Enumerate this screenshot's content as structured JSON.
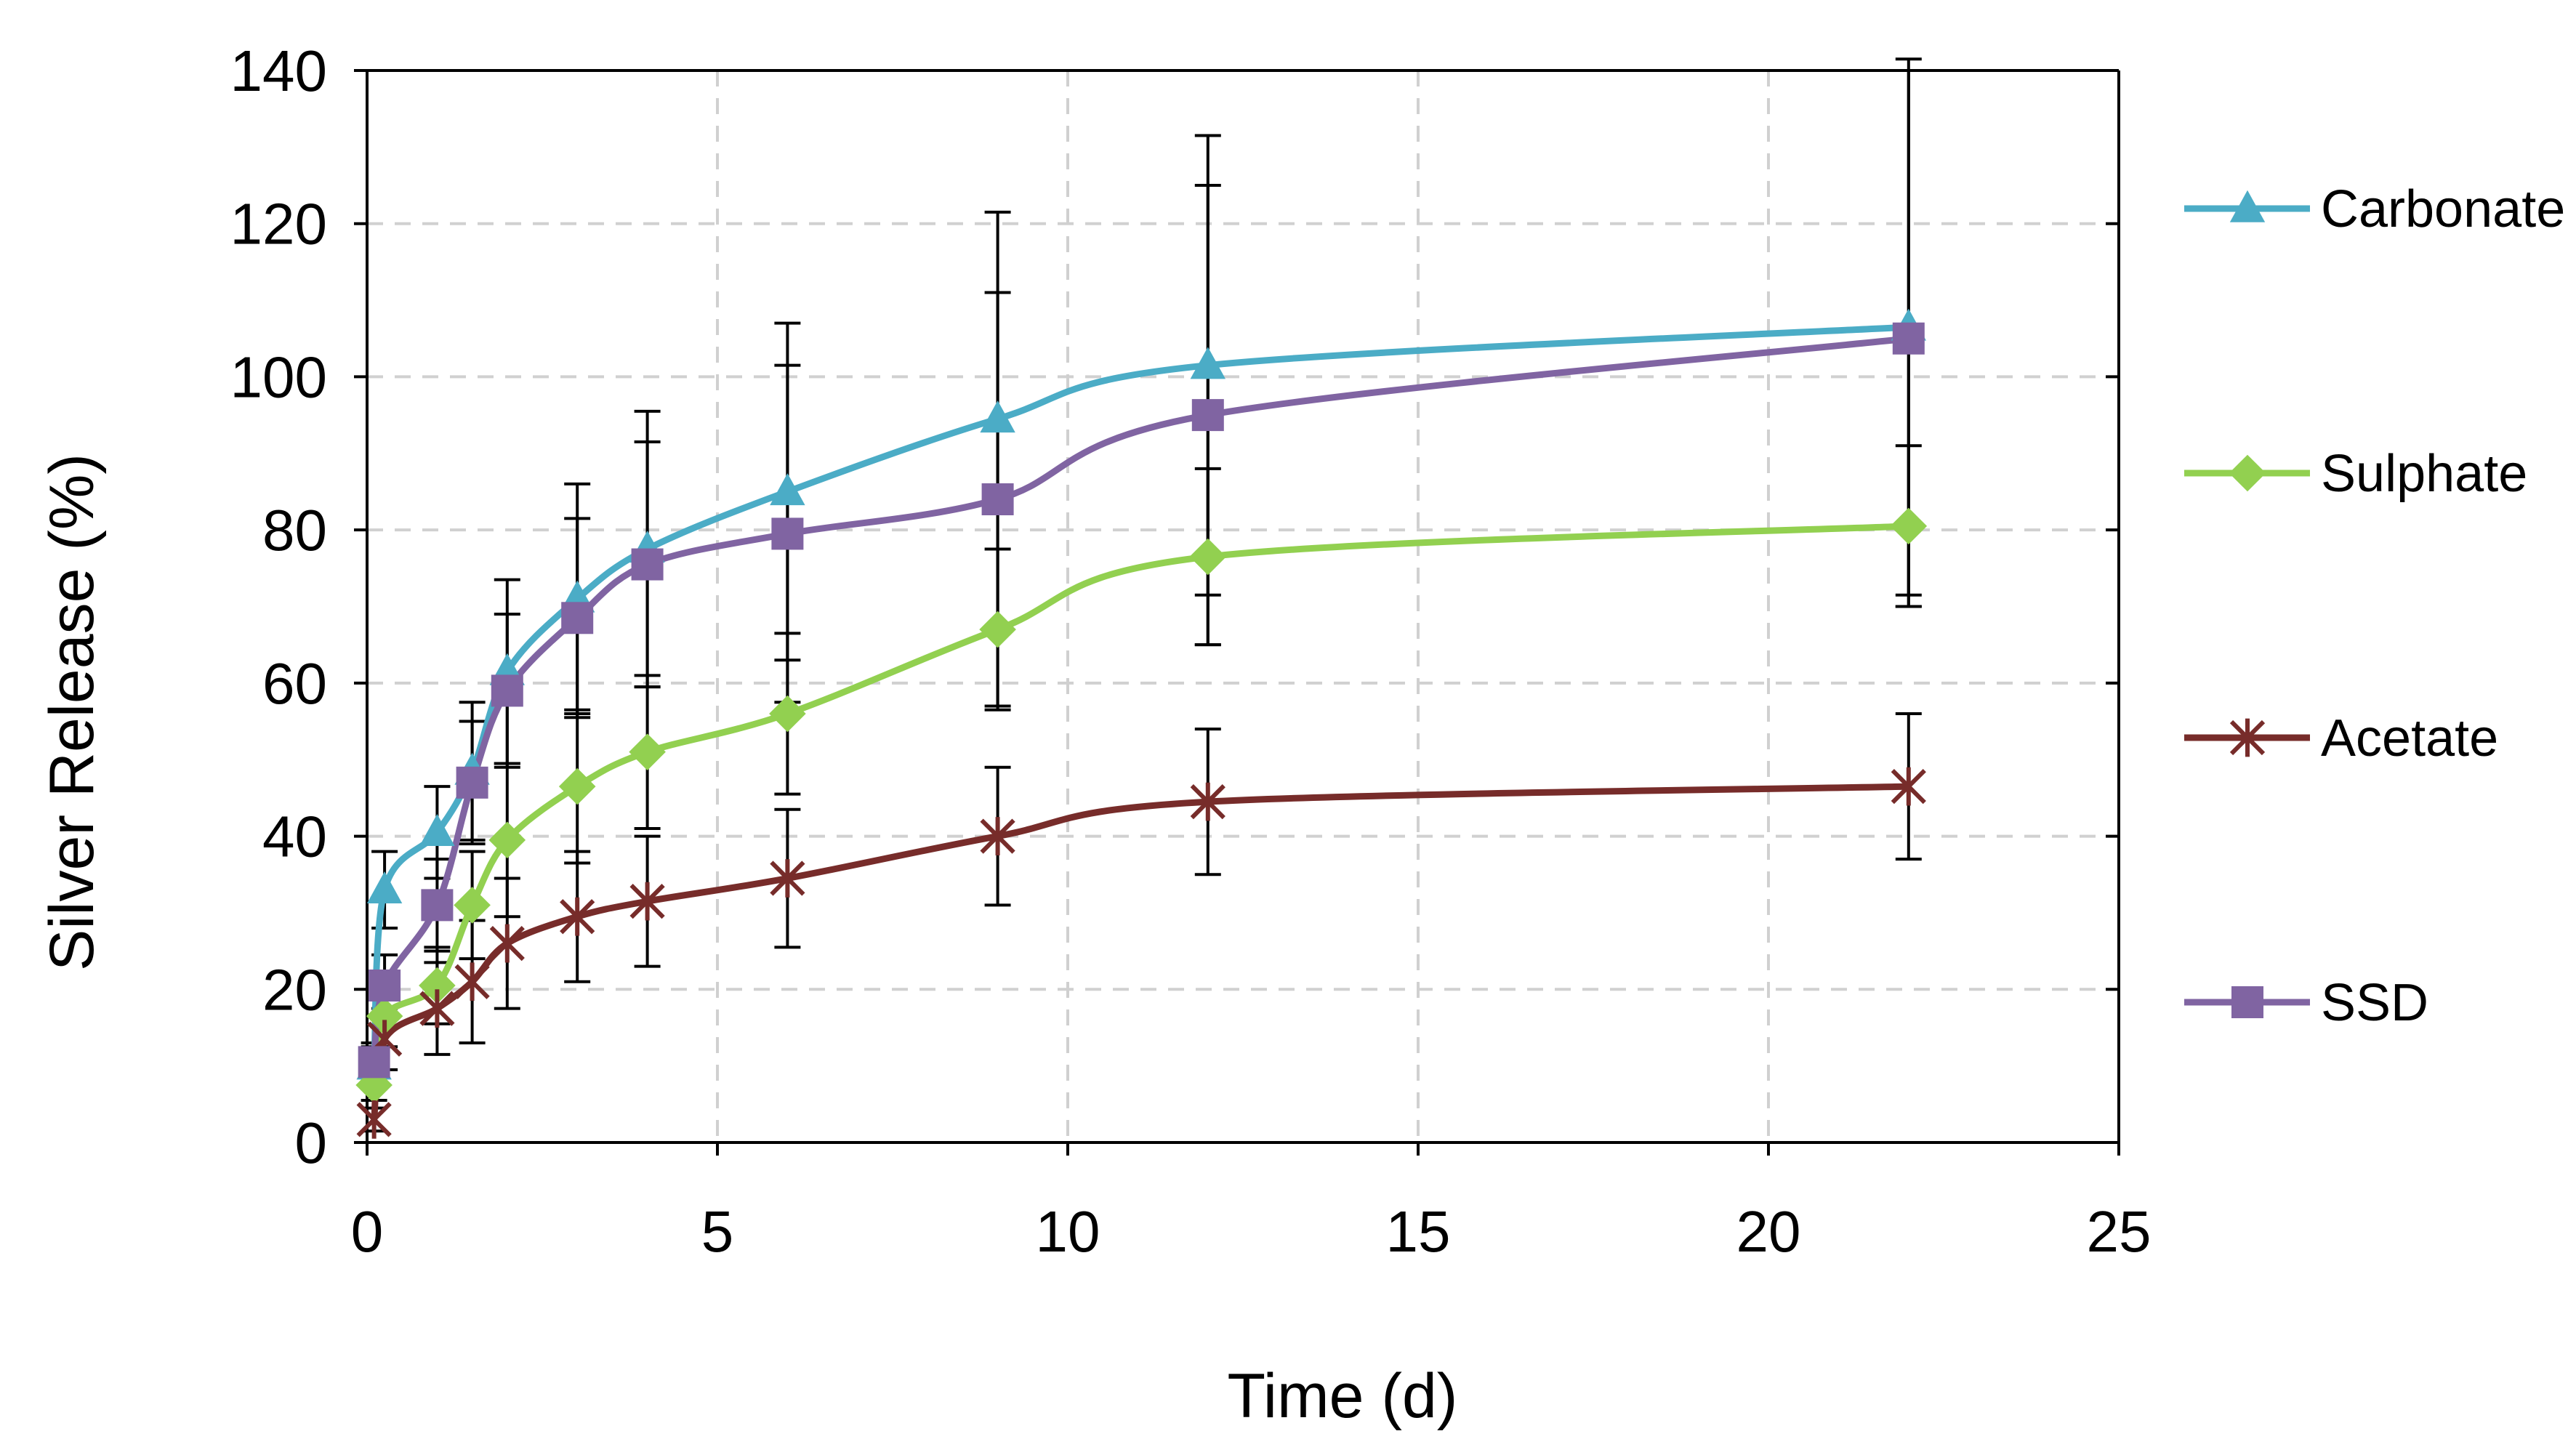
{
  "chart_data": {
    "type": "line",
    "title": "",
    "xlabel": "Time (d)",
    "ylabel": "Silver Release (%)",
    "xlim": [
      0,
      25
    ],
    "ylim": [
      0,
      140
    ],
    "xticks": [
      0,
      5,
      10,
      15,
      20,
      25
    ],
    "yticks": [
      0,
      20,
      40,
      60,
      80,
      100,
      120,
      140
    ],
    "grid": true,
    "legend_position": "right",
    "series": [
      {
        "name": "Carbonate",
        "color": "#4bacc6",
        "marker": "triangle",
        "x": [
          0.1,
          0.25,
          1,
          1.5,
          2,
          3,
          4,
          6,
          9,
          12,
          22
        ],
        "y": [
          10,
          33,
          40.5,
          48.5,
          61.5,
          71,
          77.5,
          85,
          94.5,
          101.5,
          106.5
        ],
        "err": [
          3,
          5,
          6,
          9,
          12,
          15,
          18,
          22,
          27,
          30,
          35
        ]
      },
      {
        "name": "Sulphate",
        "color": "#92d050",
        "marker": "diamond",
        "x": [
          0.1,
          0.25,
          1,
          1.5,
          2,
          3,
          4,
          6,
          9,
          12,
          22
        ],
        "y": [
          7.5,
          16.5,
          20.5,
          31,
          39.5,
          46.5,
          51,
          56,
          67,
          76.5,
          80.5
        ],
        "err": [
          2,
          4,
          5,
          7,
          10,
          10,
          10,
          10.5,
          10.5,
          11.5,
          10.5
        ]
      },
      {
        "name": "Acetate",
        "color": "#772c2a",
        "marker": "star",
        "x": [
          0.1,
          0.25,
          1,
          1.5,
          2,
          3,
          4,
          6,
          9,
          12,
          22
        ],
        "y": [
          3,
          13.5,
          17.5,
          21,
          26,
          29.5,
          31.5,
          34.5,
          40,
          44.5,
          46.5
        ],
        "err": [
          1.5,
          4,
          6,
          8,
          8.5,
          8.5,
          8.5,
          9,
          9,
          9.5,
          9.5
        ]
      },
      {
        "name": "SSD",
        "color": "#8064a2",
        "marker": "square",
        "x": [
          0.1,
          0.25,
          1,
          1.5,
          2,
          3,
          4,
          6,
          9,
          12,
          22
        ],
        "y": [
          10.5,
          20.5,
          31,
          47,
          59,
          68.5,
          75.5,
          79.5,
          84,
          95,
          105
        ],
        "err": [
          2,
          4,
          6,
          8,
          10,
          13,
          16,
          22,
          27,
          30,
          35
        ]
      }
    ]
  }
}
